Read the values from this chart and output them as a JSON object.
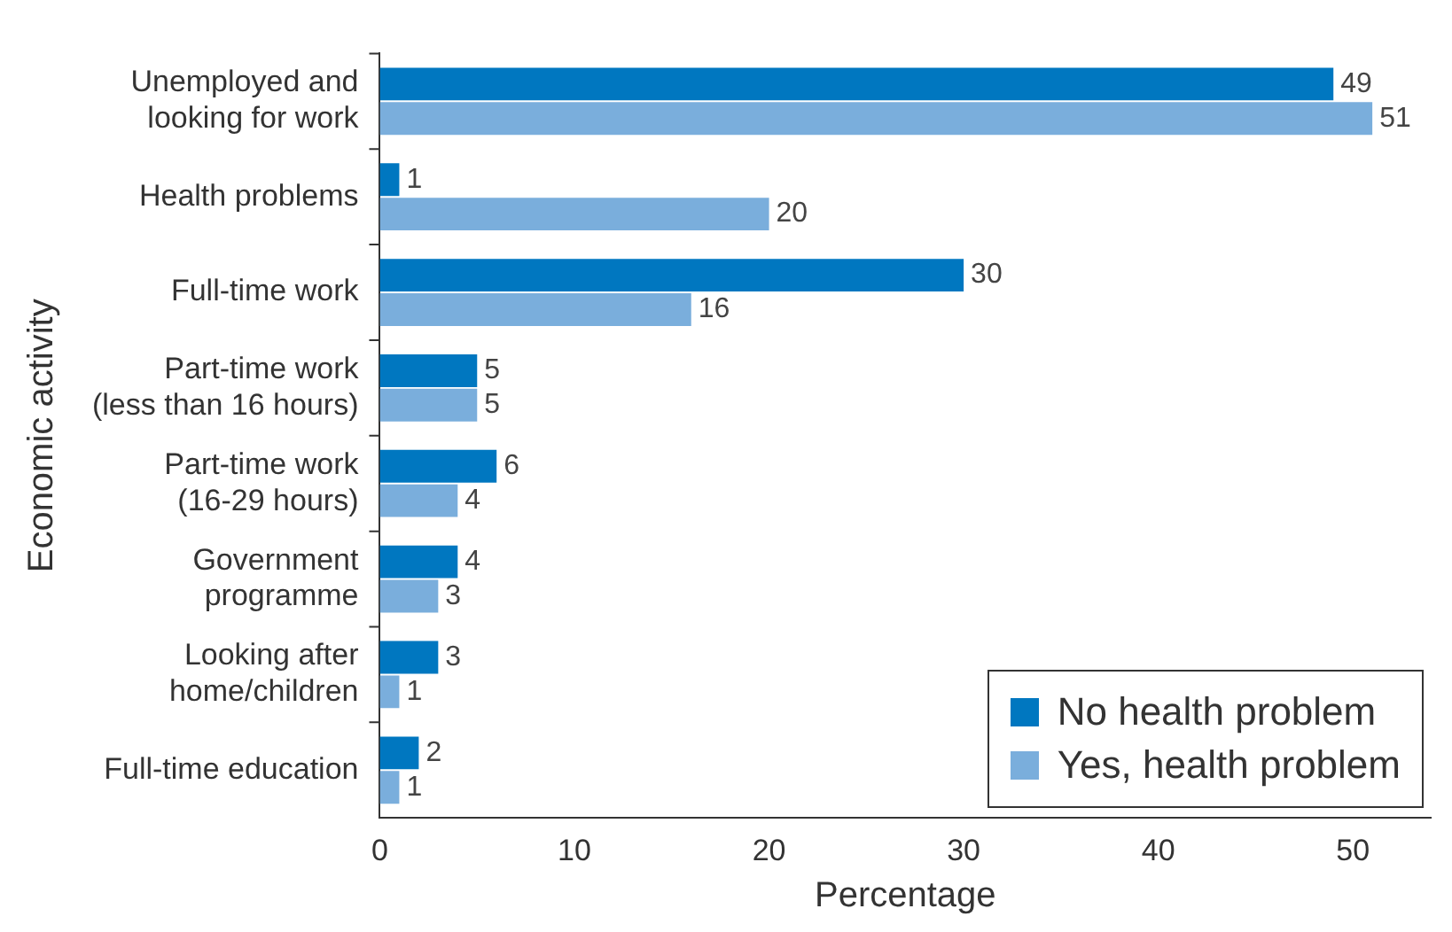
{
  "chart_data": {
    "type": "bar",
    "orientation": "horizontal",
    "xlabel": "Percentage",
    "ylabel": "Economic activity",
    "categories": [
      "Unemployed and\nlooking for work",
      "Health problems",
      "Full-time work",
      "Part-time work\n(less than 16 hours)",
      "Part-time work\n(16-29 hours)",
      "Government\nprogramme",
      "Looking after\nhome/children",
      "Full-time education"
    ],
    "series": [
      {
        "name": "No health problem",
        "color": "#0077c0",
        "values": [
          49,
          1,
          30,
          5,
          6,
          4,
          3,
          2
        ]
      },
      {
        "name": "Yes, health problem",
        "color": "#7aaedc",
        "values": [
          51,
          20,
          16,
          5,
          4,
          3,
          1,
          1
        ]
      }
    ],
    "xlim": [
      0,
      54
    ],
    "xticks": [
      0,
      10,
      20,
      30,
      40,
      50
    ],
    "grid": false,
    "legend": "bottom right",
    "data_labels": true
  }
}
